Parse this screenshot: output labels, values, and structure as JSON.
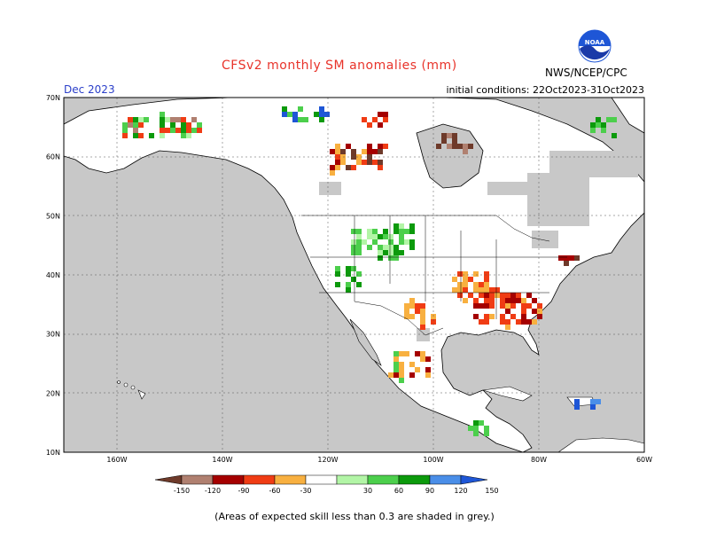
{
  "header": {
    "title": "CFSv2 monthly SM anomalies (mm)",
    "month": "Dec 2023",
    "initial_conditions": "initial conditions: 22Oct2023-31Oct2023",
    "agency": "NWS/NCEP/CPC",
    "logo_text": "NOAA"
  },
  "map": {
    "region": "North America",
    "lon_range": [
      -190,
      -60
    ],
    "lat_range": [
      10,
      70
    ],
    "lat_labels": [
      "70N",
      "60N",
      "50N",
      "40N",
      "30N",
      "20N",
      "10N"
    ],
    "lon_labels": [
      "160W",
      "140W",
      "120W",
      "100W",
      "80W",
      "60W"
    ],
    "grey_meaning": "expected skill less than 0.3",
    "colors": {
      "ocean": "#c8c8c8",
      "land_no_anomaly": "#ffffff",
      "skill_grey": "#c8c8c8",
      "coast": "#000000"
    },
    "anomaly_regions": [
      {
        "name": "southeast-us",
        "category": "-120",
        "color": "#a50000"
      },
      {
        "name": "ohio-valley",
        "category": "-90",
        "color": "#f03c14"
      },
      {
        "name": "central-plains",
        "category": "-30",
        "color": "#f8b040"
      },
      {
        "name": "northern-rockies",
        "category": "60",
        "color": "#4ccf4c"
      },
      {
        "name": "hudson-bay",
        "category": "-150",
        "color": "#7a4a3a"
      }
    ]
  },
  "legend": {
    "tick_labels": [
      "-150",
      "-120",
      "-90",
      "-60",
      "-30",
      "30",
      "60",
      "90",
      "120",
      "150"
    ],
    "colors": [
      "#6e3a2a",
      "#b08070",
      "#a50000",
      "#f03c14",
      "#f8b040",
      "#ffffff",
      "#b2f5a6",
      "#4ccf4c",
      "#0c9a0c",
      "#4a8ee8",
      "#1e56d6"
    ]
  },
  "footnote": "(Areas of expected skill less than 0.3 are shaded in grey.)"
}
